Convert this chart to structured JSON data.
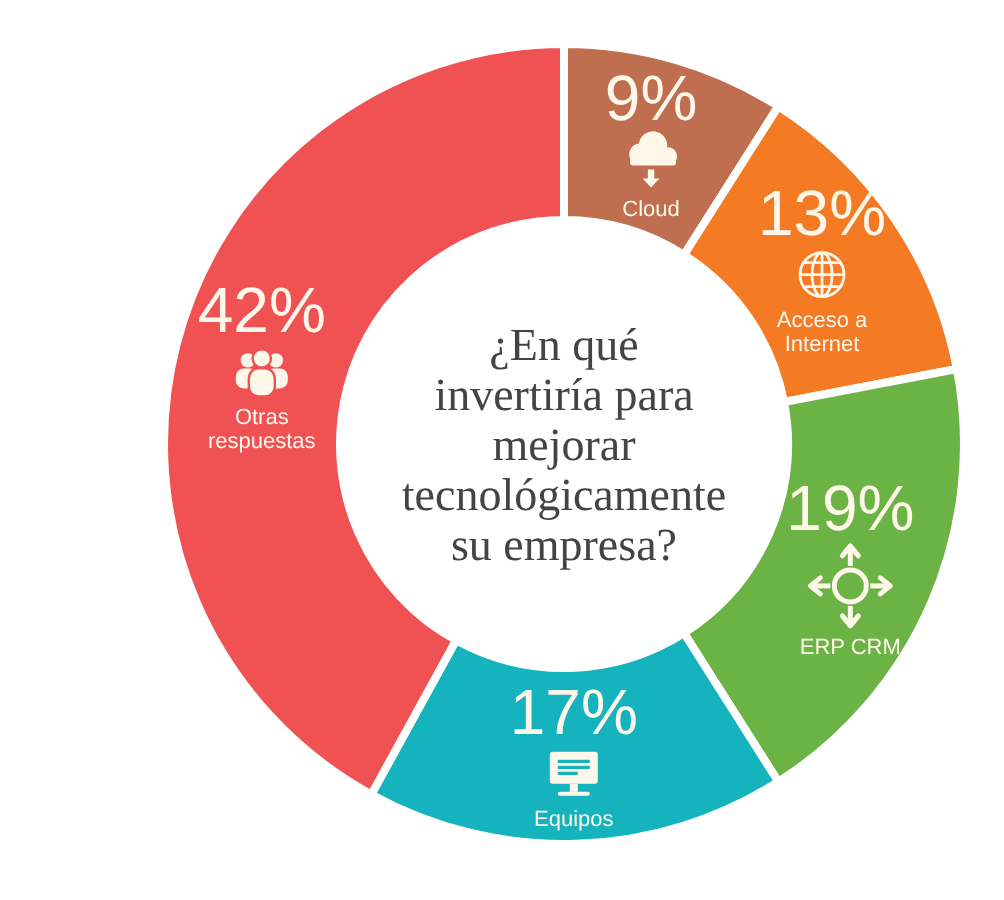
{
  "chart_data": {
    "type": "donut",
    "title": "¿En qué invertiría para mejorar tecnológicamente su empresa?",
    "categories": [
      "Cloud",
      "Acceso a Internet",
      "ERP CRM",
      "Equipos",
      "Otras respuestas"
    ],
    "values": [
      9,
      13,
      19,
      17,
      42
    ],
    "colors": [
      "#bf6f4f",
      "#f47a23",
      "#6cb346",
      "#14b3bd",
      "#f05254"
    ],
    "value_labels": [
      "9%",
      "13%",
      "19%",
      "17%",
      "42%"
    ]
  }
}
